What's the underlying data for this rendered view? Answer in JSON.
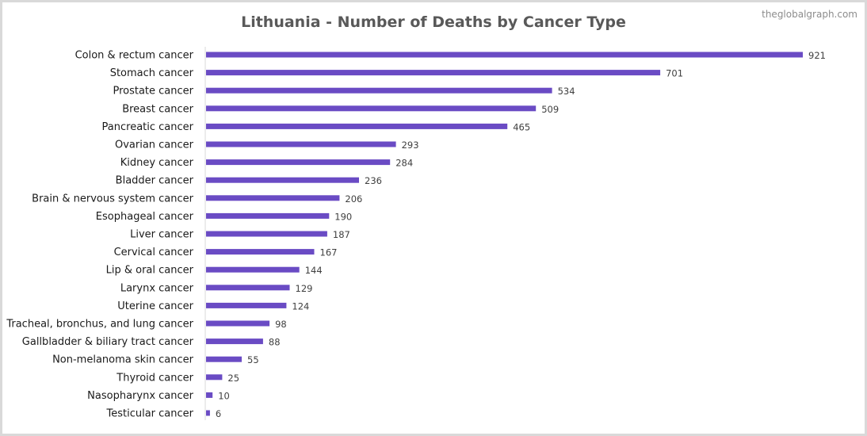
{
  "watermark": "theglobalgraph.com",
  "colors": {
    "bar": "#6a4bc4",
    "axis": "#d9d9d9"
  },
  "chart_data": {
    "type": "bar",
    "orientation": "horizontal",
    "title": "Lithuania - Number of Deaths by Cancer Type",
    "categories": [
      "Colon & rectum cancer",
      "Stomach cancer",
      "Prostate cancer",
      "Breast cancer",
      "Pancreatic cancer",
      "Ovarian cancer",
      "Kidney cancer",
      "Bladder cancer",
      "Brain & nervous system cancer",
      "Esophageal cancer",
      "Liver cancer",
      "Cervical cancer",
      "Lip & oral cancer",
      "Larynx cancer",
      "Uterine cancer",
      "Tracheal, bronchus, and lung cancer",
      "Gallbladder & biliary tract cancer",
      "Non-melanoma skin cancer",
      "Thyroid cancer",
      "Nasopharynx cancer",
      "Testicular cancer"
    ],
    "values": [
      921,
      701,
      534,
      509,
      465,
      293,
      284,
      236,
      206,
      190,
      187,
      167,
      144,
      129,
      124,
      98,
      88,
      55,
      25,
      10,
      6
    ],
    "xlim": [
      0,
      921
    ],
    "grid": false,
    "legend": "none"
  }
}
